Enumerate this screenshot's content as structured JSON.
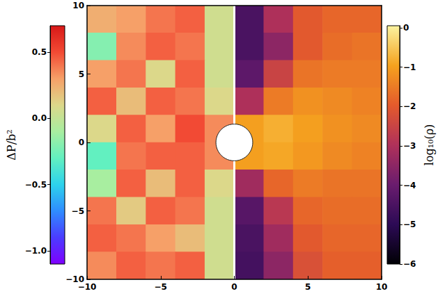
{
  "chart_data": {
    "type": "heatmap",
    "xlim": [
      -10,
      10
    ],
    "ylim": [
      -10,
      10
    ],
    "xticks": [
      {
        "value": -10,
        "label": "−10"
      },
      {
        "value": -5,
        "label": "−5"
      },
      0,
      5,
      10
    ],
    "yticks": [
      {
        "value": -10,
        "label": "−10"
      },
      {
        "value": -5,
        "label": "−5"
      },
      0,
      5,
      10
    ],
    "grid": false,
    "panels": [
      {
        "colorbar_label": "ΔP/b²",
        "x": [
          -9,
          -7,
          -5,
          -3,
          -1
        ],
        "y": [
          9,
          7,
          5,
          3,
          1,
          -1,
          -3,
          -5,
          -7,
          -9
        ],
        "cells": [
          [
            0.25,
            0.3,
            0.4,
            0.45,
            0.05
          ],
          [
            -0.2,
            0.35,
            0.45,
            0.4,
            0.05
          ],
          [
            0.3,
            0.4,
            0.1,
            0.45,
            0.05
          ],
          [
            0.45,
            0.2,
            0.45,
            0.4,
            0.1
          ],
          [
            0.1,
            0.45,
            0.3,
            0.5,
            0.35
          ],
          [
            -0.3,
            0.4,
            0.45,
            0.45,
            0.35
          ],
          [
            -0.1,
            0.45,
            0.2,
            0.45,
            0.1
          ],
          [
            0.4,
            0.15,
            0.45,
            0.4,
            0.05
          ],
          [
            0.45,
            0.4,
            0.3,
            0.2,
            0.05
          ],
          [
            0.35,
            0.45,
            0.4,
            0.45,
            0.05
          ]
        ],
        "colorbar_range": [
          -1.1,
          0.7
        ],
        "colorbar_ticks": [
          {
            "value": -1,
            "label": "−1.0"
          },
          {
            "value": -0.5,
            "label": "−0.5"
          },
          {
            "value": 0,
            "label": "0.0"
          },
          0.5
        ]
      },
      {
        "colorbar_label": "log₁₀(ρ)",
        "x": [
          1,
          3,
          5,
          7,
          9
        ],
        "y": [
          9,
          7,
          5,
          3,
          1,
          -1,
          -3,
          -5,
          -7,
          -9
        ],
        "cells": [
          [
            -4.5,
            -3.0,
            -2.0,
            -1.8,
            -1.8
          ],
          [
            -4.5,
            -3.5,
            -2.0,
            -1.7,
            -1.6
          ],
          [
            -4.2,
            -2.5,
            -1.6,
            -1.5,
            -1.5
          ],
          [
            -3.0,
            -1.5,
            -1.2,
            -1.3,
            -1.4
          ],
          [
            -1.0,
            -0.8,
            -1.0,
            -1.2,
            -1.3
          ],
          [
            -1.0,
            -0.9,
            -1.1,
            -1.3,
            -1.4
          ],
          [
            -3.2,
            -1.8,
            -1.5,
            -1.6,
            -1.6
          ],
          [
            -4.3,
            -2.8,
            -1.8,
            -1.7,
            -1.7
          ],
          [
            -4.5,
            -3.2,
            -2.0,
            -1.8,
            -1.8
          ],
          [
            -4.6,
            -3.5,
            -2.2,
            -1.9,
            -1.9
          ]
        ],
        "colorbar_range": [
          -6,
          0.05
        ],
        "colorbar_ticks": [
          {
            "value": -6,
            "label": "−6"
          },
          {
            "value": -5,
            "label": "−5"
          },
          {
            "value": -4,
            "label": "−4"
          },
          {
            "value": -3,
            "label": "−3"
          },
          {
            "value": -2,
            "label": "−2"
          },
          {
            "value": -1,
            "label": "−1"
          },
          0
        ]
      }
    ],
    "horizon": {
      "x": 0,
      "y": 0,
      "r": 1.25
    }
  }
}
